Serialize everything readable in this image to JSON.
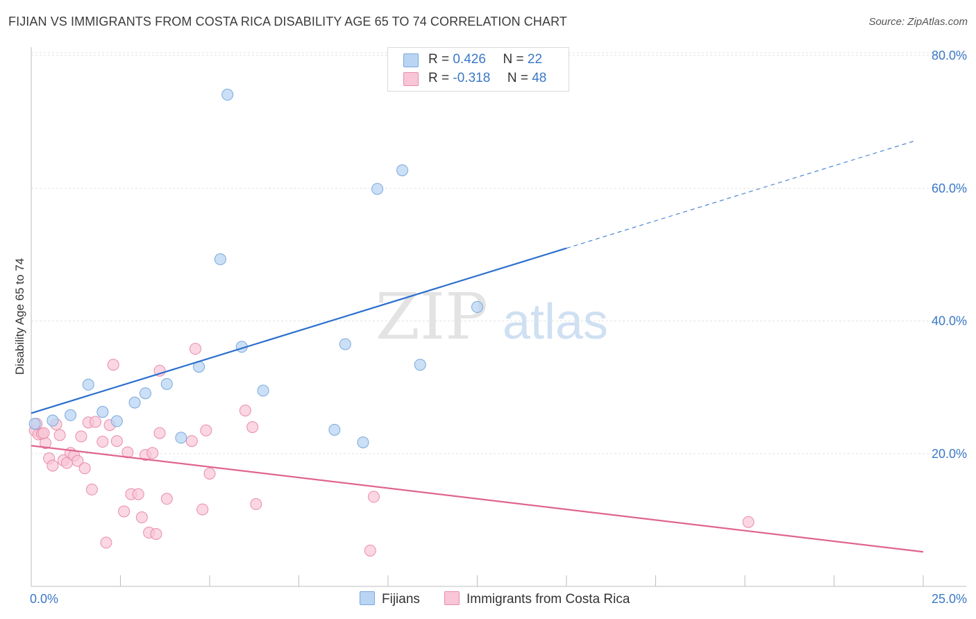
{
  "header": {
    "title": "FIJIAN VS IMMIGRANTS FROM COSTA RICA DISABILITY AGE 65 TO 74 CORRELATION CHART",
    "source": "Source: ZipAtlas.com"
  },
  "watermark": {
    "zip": "ZIP",
    "atlas": "atlas"
  },
  "legend": {
    "rows": [
      {
        "r_label": "R =",
        "r_value": "0.426",
        "n_label": "N =",
        "n_value": "22"
      },
      {
        "r_label": "R =",
        "r_value": "-0.318",
        "n_label": "N =",
        "n_value": "48"
      }
    ]
  },
  "bottom_legend": {
    "fijians": "Fijians",
    "costa_rica": "Immigrants from Costa Rica"
  },
  "colors": {
    "fijians_fill": "#bad4f3",
    "fijians_stroke": "#7aa8dc",
    "fijians_line": "#2b6fcc",
    "cr_fill": "#f8c6d6",
    "cr_stroke": "#e98bab",
    "cr_line": "#e0648f",
    "axis_label": "#3a78c7"
  },
  "chart_data": {
    "type": "scatter",
    "title": "FIJIAN VS IMMIGRANTS FROM COSTA RICA DISABILITY AGE 65 TO 74 CORRELATION CHART",
    "xlabel": "",
    "ylabel": "Disability Age 65 to 74",
    "xlim": [
      0,
      25
    ],
    "ylim": [
      0,
      80
    ],
    "x_tick_labels": [
      "0.0%",
      "25.0%"
    ],
    "y_ticks": [
      20,
      40,
      60,
      80
    ],
    "y_tick_labels": [
      "20.0%",
      "40.0%",
      "60.0%",
      "80.0%"
    ],
    "grid": true,
    "series": [
      {
        "name": "Fijians",
        "points": [
          [
            0.1,
            24.5
          ],
          [
            0.6,
            25.0
          ],
          [
            1.1,
            25.8
          ],
          [
            1.6,
            30.4
          ],
          [
            2.0,
            26.3
          ],
          [
            2.4,
            24.9
          ],
          [
            2.9,
            27.7
          ],
          [
            3.2,
            29.1
          ],
          [
            3.8,
            30.5
          ],
          [
            4.2,
            22.4
          ],
          [
            4.7,
            33.1
          ],
          [
            5.3,
            49.3
          ],
          [
            5.5,
            74.1
          ],
          [
            5.9,
            36.1
          ],
          [
            6.5,
            29.5
          ],
          [
            8.5,
            23.6
          ],
          [
            8.8,
            36.5
          ],
          [
            9.3,
            21.7
          ],
          [
            9.7,
            59.9
          ],
          [
            10.4,
            62.7
          ],
          [
            10.9,
            33.4
          ],
          [
            12.5,
            42.1
          ]
        ],
        "trend": {
          "x0": 0,
          "y0": 26.1,
          "x_solid_end": 15.0,
          "x1": 24.8,
          "y1": 67.2
        }
      },
      {
        "name": "Immigrants from Costa Rica",
        "points": [
          [
            0.1,
            23.5
          ],
          [
            0.2,
            22.9
          ],
          [
            0.3,
            23.0
          ],
          [
            0.4,
            21.6
          ],
          [
            0.5,
            19.3
          ],
          [
            0.6,
            18.2
          ],
          [
            0.7,
            24.4
          ],
          [
            0.8,
            22.8
          ],
          [
            0.9,
            19.0
          ],
          [
            1.0,
            18.6
          ],
          [
            1.1,
            20.1
          ],
          [
            1.2,
            19.7
          ],
          [
            1.3,
            18.9
          ],
          [
            1.4,
            22.6
          ],
          [
            1.5,
            17.8
          ],
          [
            1.6,
            24.7
          ],
          [
            1.7,
            14.6
          ],
          [
            1.8,
            24.8
          ],
          [
            2.0,
            21.8
          ],
          [
            2.1,
            6.6
          ],
          [
            2.2,
            24.3
          ],
          [
            2.3,
            33.4
          ],
          [
            2.4,
            21.9
          ],
          [
            2.6,
            11.3
          ],
          [
            2.7,
            20.2
          ],
          [
            2.8,
            13.9
          ],
          [
            3.0,
            13.9
          ],
          [
            3.1,
            10.4
          ],
          [
            3.2,
            19.8
          ],
          [
            3.3,
            8.1
          ],
          [
            3.4,
            20.1
          ],
          [
            3.5,
            7.9
          ],
          [
            3.6,
            32.5
          ],
          [
            3.6,
            23.1
          ],
          [
            3.8,
            13.2
          ],
          [
            4.5,
            21.9
          ],
          [
            4.6,
            35.8
          ],
          [
            4.8,
            11.6
          ],
          [
            4.9,
            23.5
          ],
          [
            5.0,
            17.0
          ],
          [
            6.0,
            26.5
          ],
          [
            6.2,
            24.0
          ],
          [
            6.3,
            12.4
          ],
          [
            9.5,
            5.4
          ],
          [
            9.6,
            13.5
          ],
          [
            20.1,
            9.7
          ],
          [
            0.15,
            24.5
          ],
          [
            0.35,
            23.1
          ]
        ],
        "trend": {
          "x0": 0,
          "y0": 21.2,
          "x1": 25,
          "y1": 5.2
        }
      }
    ]
  }
}
